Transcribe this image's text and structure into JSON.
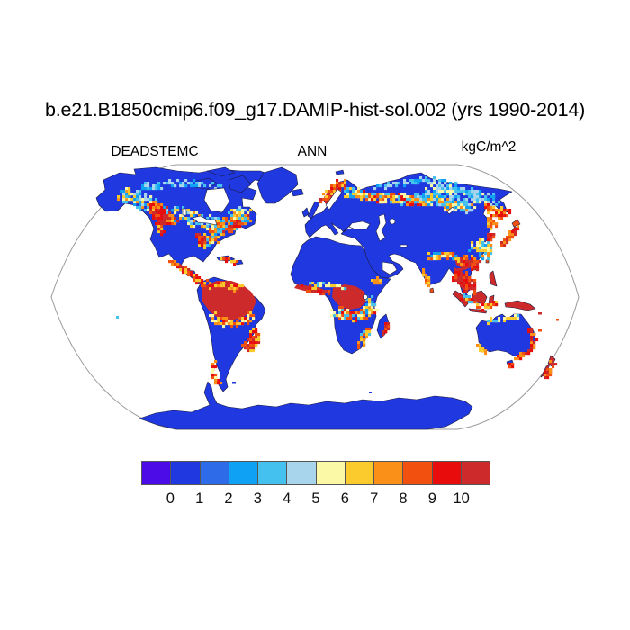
{
  "header": {
    "title": "b.e21.B1850cmip6.f09_g17.DAMIP-hist-sol.002 (yrs 1990-2014)",
    "left_label": "DEADSTEMC",
    "center_label": "ANN",
    "right_label": "kgC/m^2"
  },
  "map": {
    "palette": {
      "c0": "#4B0CE8",
      "c1": "#2038DF",
      "c2": "#2E6BE8",
      "c3": "#0FA2F4",
      "c4": "#44C1EE",
      "c5": "#A8D4EC",
      "c6": "#FBF8A6",
      "c7": "#FBCB2E",
      "c8": "#FB9019",
      "c9": "#F2500F",
      "c10": "#E80C0C",
      "c11": "#CD2B2B"
    },
    "ocean": "#ffffff",
    "coast": "#1b1b40",
    "frame": "#999999"
  },
  "chart_data": {
    "type": "heatmap",
    "title": "b.e21.B1850cmip6.f09_g17.DAMIP-hist-sol.002 (yrs 1990-2014)",
    "variable": "DEADSTEMC",
    "season": "ANN",
    "units": "kgC/m^2",
    "projection": "Robinson-style global world map, ocean shown white",
    "colorbar": {
      "orientation": "horizontal",
      "tick_labels": [
        "0",
        "1",
        "2",
        "3",
        "4",
        "5",
        "6",
        "7",
        "8",
        "9",
        "10"
      ],
      "colors": [
        "#4B0CE8",
        "#2038DF",
        "#2E6BE8",
        "#0FA2F4",
        "#44C1EE",
        "#A8D4EC",
        "#FBF8A6",
        "#FBCB2E",
        "#FB9019",
        "#F2500F",
        "#E80C0C",
        "#CD2B2B"
      ],
      "binning": "12 bins: below 0, 0-1, 1-2, 2-3, 3-4, 4-5, 5-6, 6-7, 7-8, 8-9, 9-10, above 10"
    },
    "regions": [
      {
        "name": "Amazon basin",
        "value_kgC_m2": ">10"
      },
      {
        "name": "Congo basin",
        "value_kgC_m2": ">10"
      },
      {
        "name": "Southeast Asia (Indochina, Yunnan)",
        "value_kgC_m2": ">10"
      },
      {
        "name": "Indonesia / Borneo / New Guinea / Philippines",
        "value_kgC_m2": ">10"
      },
      {
        "name": "Pacific Northwest North America (BC)",
        "value_kgC_m2": "8 to >10"
      },
      {
        "name": "Canadian boreal belt",
        "value_kgC_m2": "2-8 mottled"
      },
      {
        "name": "US East Coast / Appalachians / New England",
        "value_kgC_m2": "3-10 mottled"
      },
      {
        "name": "Scandinavia (south Norway/Sweden core)",
        "value_kgC_m2": "6 to >10"
      },
      {
        "name": "West-central Siberian taiga belt ~60N",
        "value_kgC_m2": "4-9 mottled"
      },
      {
        "name": "Northeast Siberia",
        "value_kgC_m2": "2-5 (light blues)"
      },
      {
        "name": "Okhotsk coast / Kamchatka / Sakhalin",
        "value_kgC_m2": "6-9"
      },
      {
        "name": "East China / Himalayan front",
        "value_kgC_m2": "2-8 mottled"
      },
      {
        "name": "Japan / Korea",
        "value_kgC_m2": "8 to >10"
      },
      {
        "name": "Central America / S Mexico coast",
        "value_kgC_m2": "8 to >10"
      },
      {
        "name": "Caribbean coast of Colombia/Venezuela",
        "value_kgC_m2": "7 to >10"
      },
      {
        "name": "SE Brazil Atlantic forest",
        "value_kgC_m2": "8 to >10"
      },
      {
        "name": "Southern Chile coast",
        "value_kgC_m2": "6-9"
      },
      {
        "name": "West Africa Guinea coast",
        "value_kgC_m2": "8 to >10"
      },
      {
        "name": "Miombo belt south of Congo",
        "value_kgC_m2": "3-9 mottled"
      },
      {
        "name": "Madagascar east coast",
        "value_kgC_m2": "8 to >10"
      },
      {
        "name": "Eastern Australia coastal strip",
        "value_kgC_m2": "8 to >10"
      },
      {
        "name": "New Zealand",
        "value_kgC_m2": "8 to >10"
      },
      {
        "name": "Other vegetated land, tundra, deserts, Greenland, Antarctica",
        "value_kgC_m2": "0-1"
      },
      {
        "name": "Ocean and inland seas (Hudson Bay, Baltic, Black, Caspian, lakes)",
        "value_kgC_m2": "no data (white)"
      }
    ]
  }
}
